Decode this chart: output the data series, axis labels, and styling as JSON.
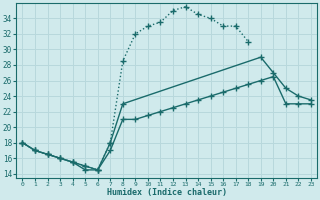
{
  "xlabel": "Humidex (Indice chaleur)",
  "bg_color": "#d0eaec",
  "grid_color": "#b8d8dc",
  "line_color": "#1a6b6b",
  "xlim": [
    -0.5,
    23.5
  ],
  "ylim": [
    13.5,
    36
  ],
  "xticks": [
    0,
    1,
    2,
    3,
    4,
    5,
    6,
    7,
    8,
    9,
    10,
    11,
    12,
    13,
    14,
    15,
    16,
    17,
    18,
    19,
    20,
    21,
    22,
    23
  ],
  "yticks": [
    14,
    16,
    18,
    20,
    22,
    24,
    26,
    28,
    30,
    32,
    34
  ],
  "curve1_x": [
    0,
    1,
    2,
    3,
    4,
    5,
    6,
    7,
    8,
    9,
    10,
    11,
    12,
    13,
    14,
    15,
    16,
    17,
    18
  ],
  "curve1_y": [
    18,
    17,
    16.5,
    16,
    15.5,
    15,
    14.5,
    18,
    28.5,
    32,
    33,
    33.5,
    35,
    35.5,
    34.5,
    34,
    33,
    33,
    31
  ],
  "curve2_x": [
    0,
    1,
    2,
    3,
    4,
    5,
    6,
    7,
    8,
    19,
    20,
    21,
    22,
    23
  ],
  "curve2_y": [
    18,
    17,
    16.5,
    16,
    15.5,
    15,
    14.5,
    18,
    23,
    29,
    27,
    25,
    24,
    23.5
  ],
  "curve3_x": [
    0,
    1,
    2,
    3,
    4,
    5,
    6,
    7,
    8,
    9,
    10,
    11,
    12,
    13,
    14,
    15,
    16,
    17,
    18,
    19,
    20,
    21,
    22,
    23
  ],
  "curve3_y": [
    18,
    17,
    16.5,
    16,
    15.5,
    14.5,
    14.5,
    17,
    21,
    21,
    21.5,
    22,
    22.5,
    23,
    23.5,
    24,
    24.5,
    25,
    25.5,
    26,
    26.5,
    23,
    23,
    23
  ],
  "marker_size": 2.5,
  "line_width": 1.0
}
